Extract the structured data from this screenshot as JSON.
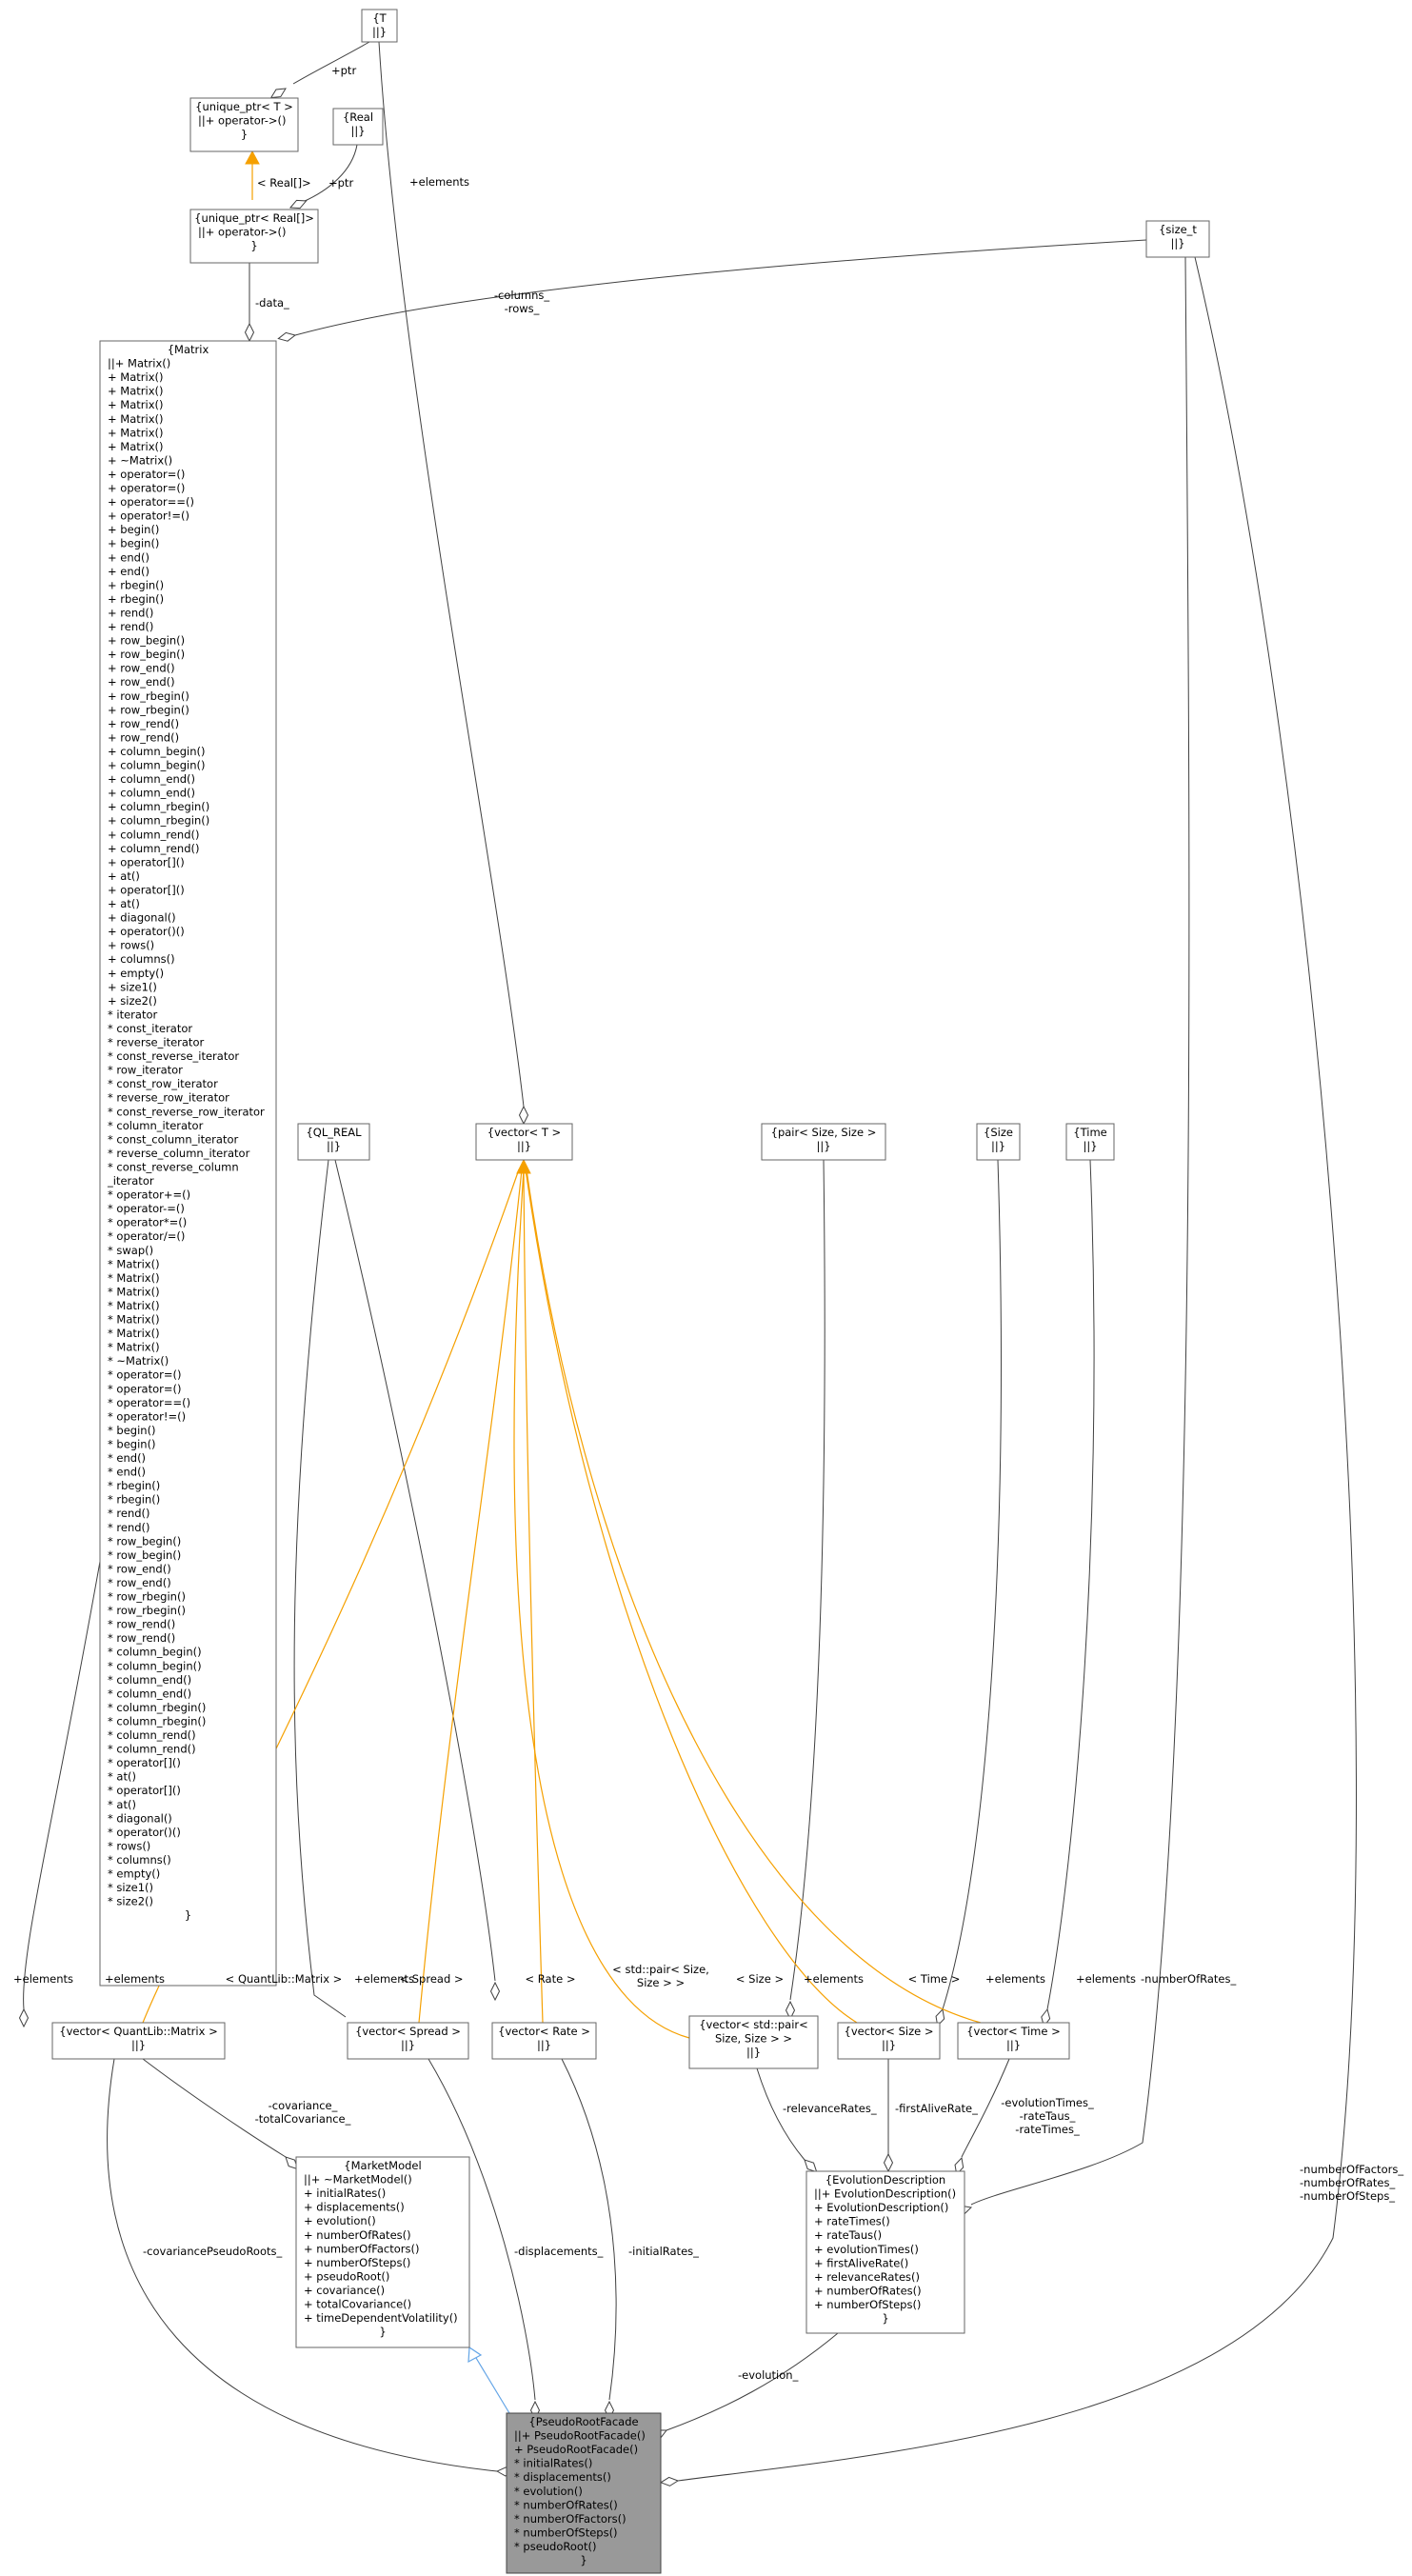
{
  "nodes": {
    "T": {
      "lines": [
        "{T",
        "||}"
      ]
    },
    "unique_ptr_T": {
      "lines": [
        "{unique_ptr< T >",
        "||+ operator->()",
        "}"
      ]
    },
    "Real": {
      "lines": [
        "{Real",
        "||}"
      ]
    },
    "unique_ptr_Real": {
      "lines": [
        "{unique_ptr< Real[]>",
        "||+ operator->()",
        "}"
      ]
    },
    "size_t": {
      "lines": [
        "{size_t",
        "||}"
      ]
    },
    "Matrix": {
      "lines": [
        "{Matrix",
        "||+ Matrix()",
        "+ Matrix()",
        "+ Matrix()",
        "+ Matrix()",
        "+ Matrix()",
        "+ Matrix()",
        "+ Matrix()",
        "+ ~Matrix()",
        "+ operator=()",
        "+ operator=()",
        "+ operator==()",
        "+ operator!=()",
        "+ begin()",
        "+ begin()",
        "+ end()",
        "+ end()",
        "+ rbegin()",
        "+ rbegin()",
        "+ rend()",
        "+ rend()",
        "+ row_begin()",
        "+ row_begin()",
        "+ row_end()",
        "+ row_end()",
        "+ row_rbegin()",
        "+ row_rbegin()",
        "+ row_rend()",
        "+ row_rend()",
        "+ column_begin()",
        "+ column_begin()",
        "+ column_end()",
        "+ column_end()",
        "+ column_rbegin()",
        "+ column_rbegin()",
        "+ column_rend()",
        "+ column_rend()",
        "+ operator[]()",
        "+ at()",
        "+ operator[]()",
        "+ at()",
        "+ diagonal()",
        "+ operator()()",
        "+ rows()",
        "+ columns()",
        "+ empty()",
        "+ size1()",
        "+ size2()",
        "* iterator",
        "* const_iterator",
        "* reverse_iterator",
        "* const_reverse_iterator",
        "* row_iterator",
        "* const_row_iterator",
        "* reverse_row_iterator",
        "* const_reverse_row_iterator",
        "* column_iterator",
        "* const_column_iterator",
        "* reverse_column_iterator",
        "* const_reverse_column",
        "_iterator",
        "* operator+=()",
        "* operator-=()",
        "* operator*=()",
        "* operator/=()",
        "* swap()",
        "* Matrix()",
        "* Matrix()",
        "* Matrix()",
        "* Matrix()",
        "* Matrix()",
        "* Matrix()",
        "* Matrix()",
        "* ~Matrix()",
        "* operator=()",
        "* operator=()",
        "* operator==()",
        "* operator!=()",
        "* begin()",
        "* begin()",
        "* end()",
        "* end()",
        "* rbegin()",
        "* rbegin()",
        "* rend()",
        "* rend()",
        "* row_begin()",
        "* row_begin()",
        "* row_end()",
        "* row_end()",
        "* row_rbegin()",
        "* row_rbegin()",
        "* row_rend()",
        "* row_rend()",
        "* column_begin()",
        "* column_begin()",
        "* column_end()",
        "* column_end()",
        "* column_rbegin()",
        "* column_rbegin()",
        "* column_rend()",
        "* column_rend()",
        "* operator[]()",
        "* at()",
        "* operator[]()",
        "* at()",
        "* diagonal()",
        "* operator()()",
        "* rows()",
        "* columns()",
        "* empty()",
        "* size1()",
        "* size2()",
        "}"
      ]
    },
    "QL_REAL": {
      "lines": [
        "{QL_REAL",
        "||}"
      ]
    },
    "vector_T": {
      "lines": [
        "{vector< T >",
        "||}"
      ]
    },
    "pair_Size": {
      "lines": [
        "{pair< Size, Size >",
        "||}"
      ]
    },
    "Size": {
      "lines": [
        "{Size",
        "||}"
      ]
    },
    "Time": {
      "lines": [
        "{Time",
        "||}"
      ]
    },
    "vector_Matrix": {
      "lines": [
        "{vector< QuantLib::Matrix >",
        "||}"
      ]
    },
    "vector_Spread": {
      "lines": [
        "{vector< Spread >",
        "||}"
      ]
    },
    "vector_Rate": {
      "lines": [
        "{vector< Rate >",
        "||}"
      ]
    },
    "vector_pair": {
      "lines": [
        "{vector< std::pair<",
        "Size, Size > >",
        "||}"
      ]
    },
    "vector_Size": {
      "lines": [
        "{vector< Size >",
        "||}"
      ]
    },
    "vector_Time": {
      "lines": [
        "{vector< Time >",
        "||}"
      ]
    },
    "MarketModel": {
      "lines": [
        "{MarketModel",
        "||+ ~MarketModel()",
        "+ initialRates()",
        "+ displacements()",
        "+ evolution()",
        "+ numberOfRates()",
        "+ numberOfFactors()",
        "+ numberOfSteps()",
        "+ pseudoRoot()",
        "+ covariance()",
        "+ totalCovariance()",
        "+ timeDependentVolatility()",
        "}"
      ]
    },
    "EvolutionDescription": {
      "lines": [
        "{EvolutionDescription",
        "||+ EvolutionDescription()",
        "+ EvolutionDescription()",
        "+ rateTimes()",
        "+ rateTaus()",
        "+ evolutionTimes()",
        "+ firstAliveRate()",
        "+ relevanceRates()",
        "+ numberOfRates()",
        "+ numberOfSteps()",
        "}"
      ]
    },
    "PseudoRootFacade": {
      "lines": [
        "{PseudoRootFacade",
        "||+ PseudoRootFacade()",
        "+ PseudoRootFacade()",
        "* initialRates()",
        "* displacements()",
        "* evolution()",
        "* numberOfRates()",
        "* numberOfFactors()",
        "* numberOfSteps()",
        "* pseudoRoot()",
        "}"
      ]
    }
  },
  "edge_labels": {
    "ptr_T": "+ptr",
    "ptr_real": "+ptr",
    "real_arr": "< Real[]>",
    "elements_T": "+elements",
    "data": "-data_",
    "cols_rows": [
      "-columns_",
      "-rows_"
    ],
    "el_matrix": "+elements",
    "el_qlreal": "+elements",
    "el_pair": "+elements",
    "el_size": "+elements",
    "el_time": "+elements",
    "num_rates": "-numberOfRates_",
    "num_fac": [
      "-numberOfFactors_",
      "-numberOfRates_",
      "-numberOfSteps_"
    ],
    "t_matrix": "< QuantLib::Matrix >",
    "t_spread": "< Spread >",
    "t_rate": "< Rate >",
    "t_pair": [
      "< std::pair< Size,",
      "Size > >"
    ],
    "t_size": "< Size >",
    "t_time": "< Time >",
    "cov": [
      "-covariance_",
      "-totalCovariance_"
    ],
    "cov_roots": "-covariancePseudoRoots_",
    "disp": "-displacements_",
    "init_rates": "-initialRates_",
    "relevance": "-relevanceRates_",
    "first_alive": "-firstAliveRate_",
    "evo_times": [
      "-evolutionTimes_",
      "-rateTaus_",
      "-rateTimes_"
    ],
    "evolution": "-evolution_"
  }
}
